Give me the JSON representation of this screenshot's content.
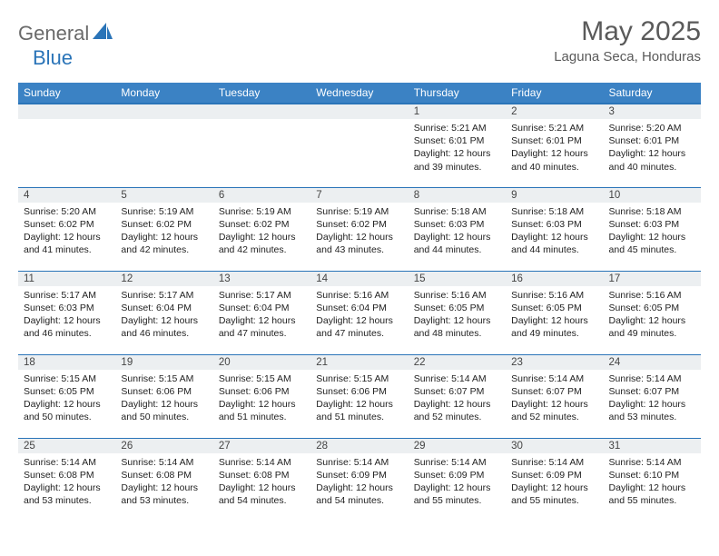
{
  "logo": {
    "word1": "General",
    "word2": "Blue"
  },
  "title": "May 2025",
  "location": "Laguna Seca, Honduras",
  "header_bg": "#3b82c4",
  "border_color": "#2a74b8",
  "daynum_bg": "#eceff1",
  "day_headers": [
    "Sunday",
    "Monday",
    "Tuesday",
    "Wednesday",
    "Thursday",
    "Friday",
    "Saturday"
  ],
  "weeks": [
    [
      null,
      null,
      null,
      null,
      {
        "n": "1",
        "sr": "5:21 AM",
        "ss": "6:01 PM",
        "dl": "12 hours and 39 minutes."
      },
      {
        "n": "2",
        "sr": "5:21 AM",
        "ss": "6:01 PM",
        "dl": "12 hours and 40 minutes."
      },
      {
        "n": "3",
        "sr": "5:20 AM",
        "ss": "6:01 PM",
        "dl": "12 hours and 40 minutes."
      }
    ],
    [
      {
        "n": "4",
        "sr": "5:20 AM",
        "ss": "6:02 PM",
        "dl": "12 hours and 41 minutes."
      },
      {
        "n": "5",
        "sr": "5:19 AM",
        "ss": "6:02 PM",
        "dl": "12 hours and 42 minutes."
      },
      {
        "n": "6",
        "sr": "5:19 AM",
        "ss": "6:02 PM",
        "dl": "12 hours and 42 minutes."
      },
      {
        "n": "7",
        "sr": "5:19 AM",
        "ss": "6:02 PM",
        "dl": "12 hours and 43 minutes."
      },
      {
        "n": "8",
        "sr": "5:18 AM",
        "ss": "6:03 PM",
        "dl": "12 hours and 44 minutes."
      },
      {
        "n": "9",
        "sr": "5:18 AM",
        "ss": "6:03 PM",
        "dl": "12 hours and 44 minutes."
      },
      {
        "n": "10",
        "sr": "5:18 AM",
        "ss": "6:03 PM",
        "dl": "12 hours and 45 minutes."
      }
    ],
    [
      {
        "n": "11",
        "sr": "5:17 AM",
        "ss": "6:03 PM",
        "dl": "12 hours and 46 minutes."
      },
      {
        "n": "12",
        "sr": "5:17 AM",
        "ss": "6:04 PM",
        "dl": "12 hours and 46 minutes."
      },
      {
        "n": "13",
        "sr": "5:17 AM",
        "ss": "6:04 PM",
        "dl": "12 hours and 47 minutes."
      },
      {
        "n": "14",
        "sr": "5:16 AM",
        "ss": "6:04 PM",
        "dl": "12 hours and 47 minutes."
      },
      {
        "n": "15",
        "sr": "5:16 AM",
        "ss": "6:05 PM",
        "dl": "12 hours and 48 minutes."
      },
      {
        "n": "16",
        "sr": "5:16 AM",
        "ss": "6:05 PM",
        "dl": "12 hours and 49 minutes."
      },
      {
        "n": "17",
        "sr": "5:16 AM",
        "ss": "6:05 PM",
        "dl": "12 hours and 49 minutes."
      }
    ],
    [
      {
        "n": "18",
        "sr": "5:15 AM",
        "ss": "6:05 PM",
        "dl": "12 hours and 50 minutes."
      },
      {
        "n": "19",
        "sr": "5:15 AM",
        "ss": "6:06 PM",
        "dl": "12 hours and 50 minutes."
      },
      {
        "n": "20",
        "sr": "5:15 AM",
        "ss": "6:06 PM",
        "dl": "12 hours and 51 minutes."
      },
      {
        "n": "21",
        "sr": "5:15 AM",
        "ss": "6:06 PM",
        "dl": "12 hours and 51 minutes."
      },
      {
        "n": "22",
        "sr": "5:14 AM",
        "ss": "6:07 PM",
        "dl": "12 hours and 52 minutes."
      },
      {
        "n": "23",
        "sr": "5:14 AM",
        "ss": "6:07 PM",
        "dl": "12 hours and 52 minutes."
      },
      {
        "n": "24",
        "sr": "5:14 AM",
        "ss": "6:07 PM",
        "dl": "12 hours and 53 minutes."
      }
    ],
    [
      {
        "n": "25",
        "sr": "5:14 AM",
        "ss": "6:08 PM",
        "dl": "12 hours and 53 minutes."
      },
      {
        "n": "26",
        "sr": "5:14 AM",
        "ss": "6:08 PM",
        "dl": "12 hours and 53 minutes."
      },
      {
        "n": "27",
        "sr": "5:14 AM",
        "ss": "6:08 PM",
        "dl": "12 hours and 54 minutes."
      },
      {
        "n": "28",
        "sr": "5:14 AM",
        "ss": "6:09 PM",
        "dl": "12 hours and 54 minutes."
      },
      {
        "n": "29",
        "sr": "5:14 AM",
        "ss": "6:09 PM",
        "dl": "12 hours and 55 minutes."
      },
      {
        "n": "30",
        "sr": "5:14 AM",
        "ss": "6:09 PM",
        "dl": "12 hours and 55 minutes."
      },
      {
        "n": "31",
        "sr": "5:14 AM",
        "ss": "6:10 PM",
        "dl": "12 hours and 55 minutes."
      }
    ]
  ],
  "labels": {
    "sunrise": "Sunrise:",
    "sunset": "Sunset:",
    "daylight": "Daylight:"
  }
}
